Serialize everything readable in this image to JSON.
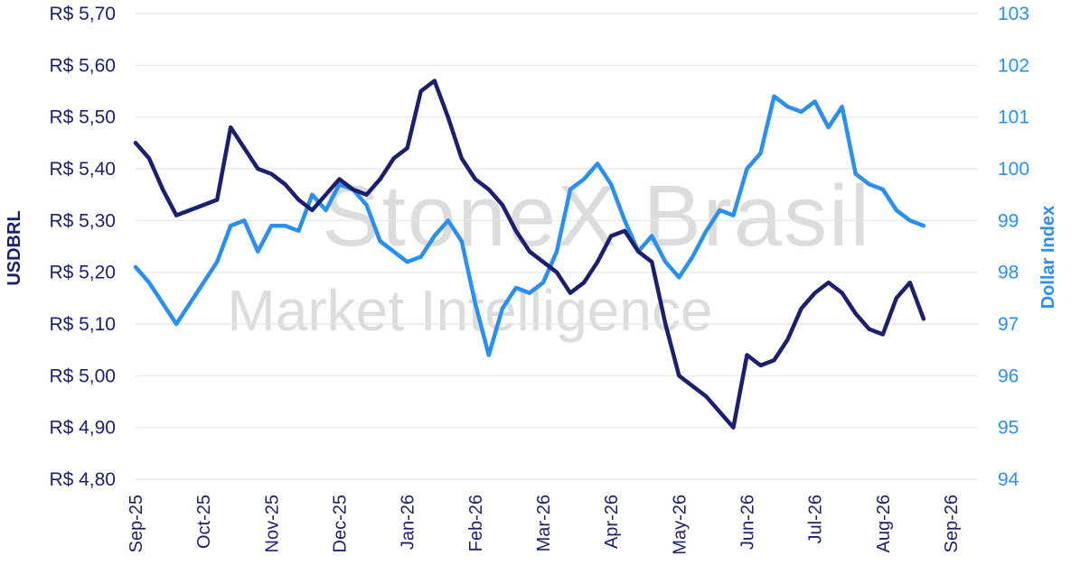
{
  "watermark": {
    "line1": "StoneX Brasil",
    "line2": "Market Intelligence"
  },
  "chart_data": {
    "type": "line",
    "title": "",
    "xlabel": "",
    "categories": [
      "Sep-25",
      "Oct-25",
      "Nov-25",
      "Dec-25",
      "Jan-26",
      "Feb-26",
      "Mar-26",
      "Apr-26",
      "May-26",
      "Jun-26",
      "Jul-26",
      "Aug-26",
      "Sep-26"
    ],
    "left_axis": {
      "label": "USDBRL",
      "ylim": [
        4.8,
        5.7
      ],
      "ticks": [
        "R$ 5,70",
        "R$ 5,60",
        "R$ 5,50",
        "R$ 5,40",
        "R$ 5,30",
        "R$ 5,20",
        "R$ 5,10",
        "R$ 5,00",
        "R$ 4,90",
        "R$ 4,80"
      ],
      "tick_values": [
        5.7,
        5.6,
        5.5,
        5.4,
        5.3,
        5.2,
        5.1,
        5.0,
        4.9,
        4.8
      ]
    },
    "right_axis": {
      "label": "Dollar Index",
      "ylim": [
        94,
        103
      ],
      "ticks": [
        "103",
        "102",
        "101",
        "100",
        "99",
        "98",
        "97",
        "96",
        "95",
        "94"
      ],
      "tick_values": [
        103,
        102,
        101,
        100,
        99,
        98,
        97,
        96,
        95,
        94
      ]
    },
    "series": [
      {
        "name": "USDBRL",
        "axis": "left",
        "color": "#1b1f6e",
        "x": [
          0,
          0.2,
          0.4,
          0.6,
          0.8,
          1,
          1.2,
          1.4,
          1.6,
          1.8,
          2,
          2.2,
          2.4,
          2.6,
          2.8,
          3,
          3.2,
          3.4,
          3.6,
          3.8,
          4,
          4.2,
          4.4,
          4.6,
          4.8,
          5,
          5.2,
          5.4,
          5.6,
          5.8,
          6,
          6.2,
          6.4,
          6.6,
          6.8,
          7,
          7.2,
          7.4,
          7.6,
          7.8,
          8,
          8.2,
          8.4,
          8.6,
          8.8,
          9,
          9.2,
          9.4,
          9.6,
          9.8,
          10,
          10.2,
          10.4,
          10.6,
          10.8,
          11,
          11.2,
          11.4,
          11.6
        ],
        "values": [
          5.45,
          5.42,
          5.36,
          5.31,
          5.32,
          5.33,
          5.34,
          5.48,
          5.44,
          5.4,
          5.39,
          5.37,
          5.34,
          5.32,
          5.35,
          5.38,
          5.36,
          5.35,
          5.38,
          5.42,
          5.44,
          5.55,
          5.57,
          5.5,
          5.42,
          5.38,
          5.36,
          5.33,
          5.28,
          5.24,
          5.22,
          5.2,
          5.16,
          5.18,
          5.22,
          5.27,
          5.28,
          5.24,
          5.22,
          5.1,
          5.0,
          4.98,
          4.96,
          4.93,
          4.9,
          5.04,
          5.02,
          5.03,
          5.07,
          5.13,
          5.16,
          5.18,
          5.16,
          5.12,
          5.09,
          5.08,
          5.15,
          5.18,
          5.11
        ]
      },
      {
        "name": "Dollar Index",
        "axis": "right",
        "color": "#2a8ff0",
        "x": [
          0,
          0.2,
          0.4,
          0.6,
          0.8,
          1,
          1.2,
          1.4,
          1.6,
          1.8,
          2,
          2.2,
          2.4,
          2.6,
          2.8,
          3,
          3.2,
          3.4,
          3.6,
          3.8,
          4,
          4.2,
          4.4,
          4.6,
          4.8,
          5,
          5.2,
          5.4,
          5.6,
          5.8,
          6,
          6.2,
          6.4,
          6.6,
          6.8,
          7,
          7.2,
          7.4,
          7.6,
          7.8,
          8,
          8.2,
          8.4,
          8.6,
          8.8,
          9,
          9.2,
          9.4,
          9.6,
          9.8,
          10,
          10.2,
          10.4,
          10.6,
          10.8,
          11,
          11.2,
          11.4,
          11.6
        ],
        "values": [
          98.1,
          97.8,
          97.4,
          97.0,
          97.4,
          97.8,
          98.2,
          98.9,
          99.0,
          98.4,
          98.9,
          98.9,
          98.8,
          99.5,
          99.2,
          99.7,
          99.6,
          99.3,
          98.6,
          98.4,
          98.2,
          98.3,
          98.7,
          99.0,
          98.6,
          97.4,
          96.4,
          97.3,
          97.7,
          97.6,
          97.8,
          98.4,
          99.6,
          99.8,
          100.1,
          99.7,
          99.0,
          98.4,
          98.7,
          98.2,
          97.9,
          98.3,
          98.8,
          99.2,
          99.1,
          100.0,
          100.3,
          101.4,
          101.2,
          101.1,
          101.3,
          100.8,
          101.2,
          99.9,
          99.7,
          99.6,
          99.2,
          99.0,
          98.9
        ]
      }
    ],
    "legend": "none",
    "grid": "horizontal"
  }
}
